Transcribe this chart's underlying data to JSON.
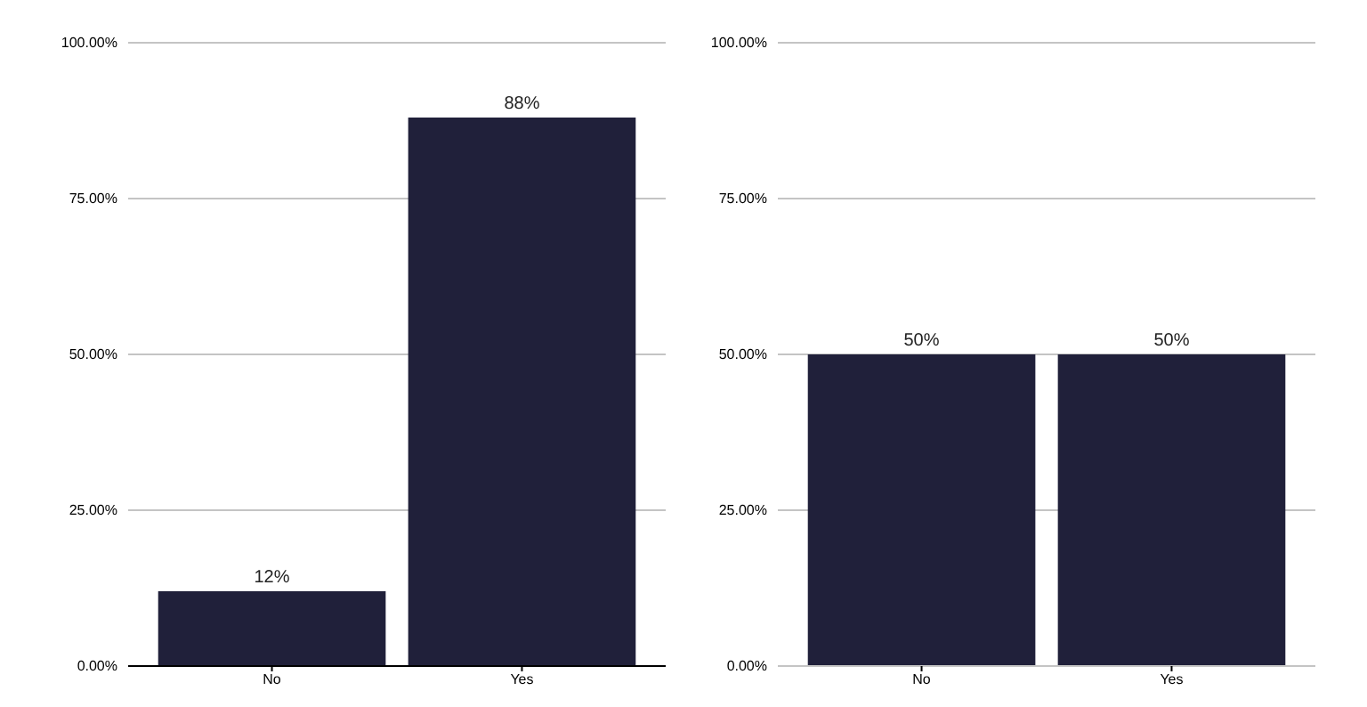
{
  "chart_data": [
    {
      "type": "bar",
      "categories": [
        "No",
        "Yes"
      ],
      "values": [
        12,
        88
      ],
      "value_labels": [
        "12%",
        "88%"
      ],
      "color": "#20203a",
      "ylim": [
        0,
        100
      ],
      "yticks": [
        {
          "value": 0,
          "label": "0.00%"
        },
        {
          "value": 25,
          "label": "25.00%"
        },
        {
          "value": 50,
          "label": "50.00%"
        },
        {
          "value": 75,
          "label": "75.00%"
        },
        {
          "value": 100,
          "label": "100.00%"
        }
      ],
      "grid": "y"
    },
    {
      "type": "bar",
      "categories": [
        "No",
        "Yes"
      ],
      "values": [
        50,
        50
      ],
      "value_labels": [
        "50%",
        "50%"
      ],
      "color": "#20203a",
      "ylim": [
        0,
        100
      ],
      "yticks": [
        {
          "value": 0,
          "label": "0.00%"
        },
        {
          "value": 25,
          "label": "25.00%"
        },
        {
          "value": 50,
          "label": "50.00%"
        },
        {
          "value": 75,
          "label": "75.00%"
        },
        {
          "value": 100,
          "label": "100.00%"
        }
      ],
      "grid": "y"
    }
  ]
}
